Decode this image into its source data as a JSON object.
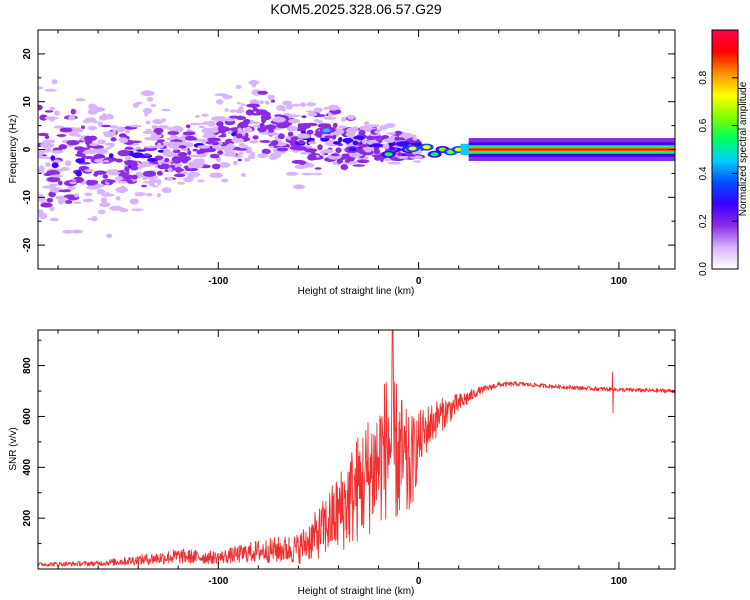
{
  "title": "KOM5.2025.328.06.57.G29",
  "chart_data": [
    {
      "type": "heatmap",
      "name": "spectrogram",
      "xlabel": "Height of straight line (km)",
      "ylabel": "Frequency (Hz)",
      "xlim": [
        -190,
        128
      ],
      "ylim": [
        -25,
        25
      ],
      "xticks": [
        -100,
        0,
        100
      ],
      "xtick_labels": [
        "-100",
        "0",
        "100"
      ],
      "yticks": [
        -20,
        -10,
        0,
        10,
        20
      ],
      "ytick_labels": [
        "-20",
        "-10",
        "0",
        "10",
        "20"
      ],
      "colorbar": {
        "label": "Normalized spectral amplitude",
        "range": [
          0,
          1
        ],
        "ticks": [
          0.0,
          0.2,
          0.4,
          0.6,
          0.8
        ],
        "tick_labels": [
          "0.0",
          "0.2",
          "0.4",
          "0.6",
          "0.8"
        ],
        "colors": [
          "#ffffff",
          "#d9b3ff",
          "#8a2be2",
          "#3a00ff",
          "#0050ff",
          "#00d0ff",
          "#00ff60",
          "#80ff00",
          "#ffff00",
          "#ff9000",
          "#ff0000",
          "#ff0050"
        ]
      },
      "features": {
        "carrier_frequency_hz": 0.0,
        "carrier_stable_from_km": 25,
        "scatter_envelope": [
          [
            -190,
            -25,
            25
          ],
          [
            -120,
            -12,
            10
          ],
          [
            -60,
            -10,
            12
          ],
          [
            -20,
            -6,
            6
          ],
          [
            0,
            -3,
            3
          ]
        ],
        "scatter_trend": [
          [
            -190,
            -3
          ],
          [
            -130,
            -1
          ],
          [
            -100,
            1
          ],
          [
            -80,
            6
          ],
          [
            -60,
            2
          ],
          [
            -40,
            2
          ],
          [
            -20,
            1
          ],
          [
            0,
            0
          ]
        ]
      }
    },
    {
      "type": "line",
      "name": "snr",
      "xlabel": "Height of straight line (km)",
      "ylabel": "SNR (v/v)",
      "xlim": [
        -190,
        128
      ],
      "ylim": [
        0,
        940
      ],
      "xticks": [
        -100,
        0,
        100
      ],
      "xtick_labels": [
        "-100",
        "0",
        "100"
      ],
      "yticks": [
        200,
        400,
        600,
        800
      ],
      "ytick_labels": [
        "200",
        "400",
        "600",
        "800"
      ],
      "series": [
        {
          "name": "SNR",
          "color": "#f03030",
          "x": [
            -190,
            -160,
            -140,
            -120,
            -100,
            -80,
            -60,
            -50,
            -40,
            -30,
            -20,
            -15,
            -10,
            -5,
            0,
            5,
            10,
            20,
            30,
            40,
            50,
            60,
            80,
            100,
            128
          ],
          "y": [
            18,
            22,
            35,
            50,
            45,
            70,
            80,
            140,
            220,
            320,
            420,
            500,
            450,
            380,
            500,
            560,
            600,
            650,
            700,
            725,
            728,
            722,
            712,
            705,
            700
          ],
          "noise_amplitude": [
            8,
            10,
            20,
            30,
            25,
            45,
            60,
            100,
            160,
            220,
            260,
            300,
            280,
            220,
            120,
            90,
            70,
            40,
            15,
            10,
            9,
            8,
            8,
            8,
            8
          ],
          "peak": {
            "x": -13,
            "y": 940
          },
          "spike": {
            "x": 97,
            "y_min": 615,
            "y_max": 775
          }
        }
      ]
    }
  ]
}
